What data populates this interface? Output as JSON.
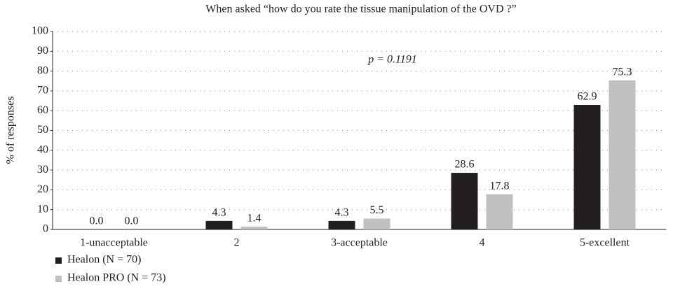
{
  "chart_data": {
    "type": "bar",
    "title": "When asked “how do you rate the tissue manipulation of the OVD ?”",
    "y_label": "% of responses",
    "annotation": "p = 0.1191",
    "categories": [
      "1-unacceptable",
      "2",
      "3-acceptable",
      "4",
      "5-excellent"
    ],
    "series": [
      {
        "name": "Healon (N = 70)",
        "color": "#231f20",
        "values": [
          0,
          4.3,
          4.3,
          28.6,
          62.9
        ],
        "value_labels": [
          "0.0",
          "4.3",
          "4.3",
          "28.6",
          "62.9"
        ]
      },
      {
        "name": "Healon PRO (N = 73)",
        "color": "#c0c0c0",
        "values": [
          0,
          1.4,
          5.5,
          17.8,
          75.3
        ],
        "value_labels": [
          "0.0",
          "1.4",
          "5.5",
          "17.8",
          "75.3"
        ]
      }
    ],
    "ylim": [
      0,
      100
    ],
    "yticks": [
      0,
      10,
      20,
      30,
      40,
      50,
      60,
      70,
      80,
      90,
      100
    ],
    "grid": true
  }
}
